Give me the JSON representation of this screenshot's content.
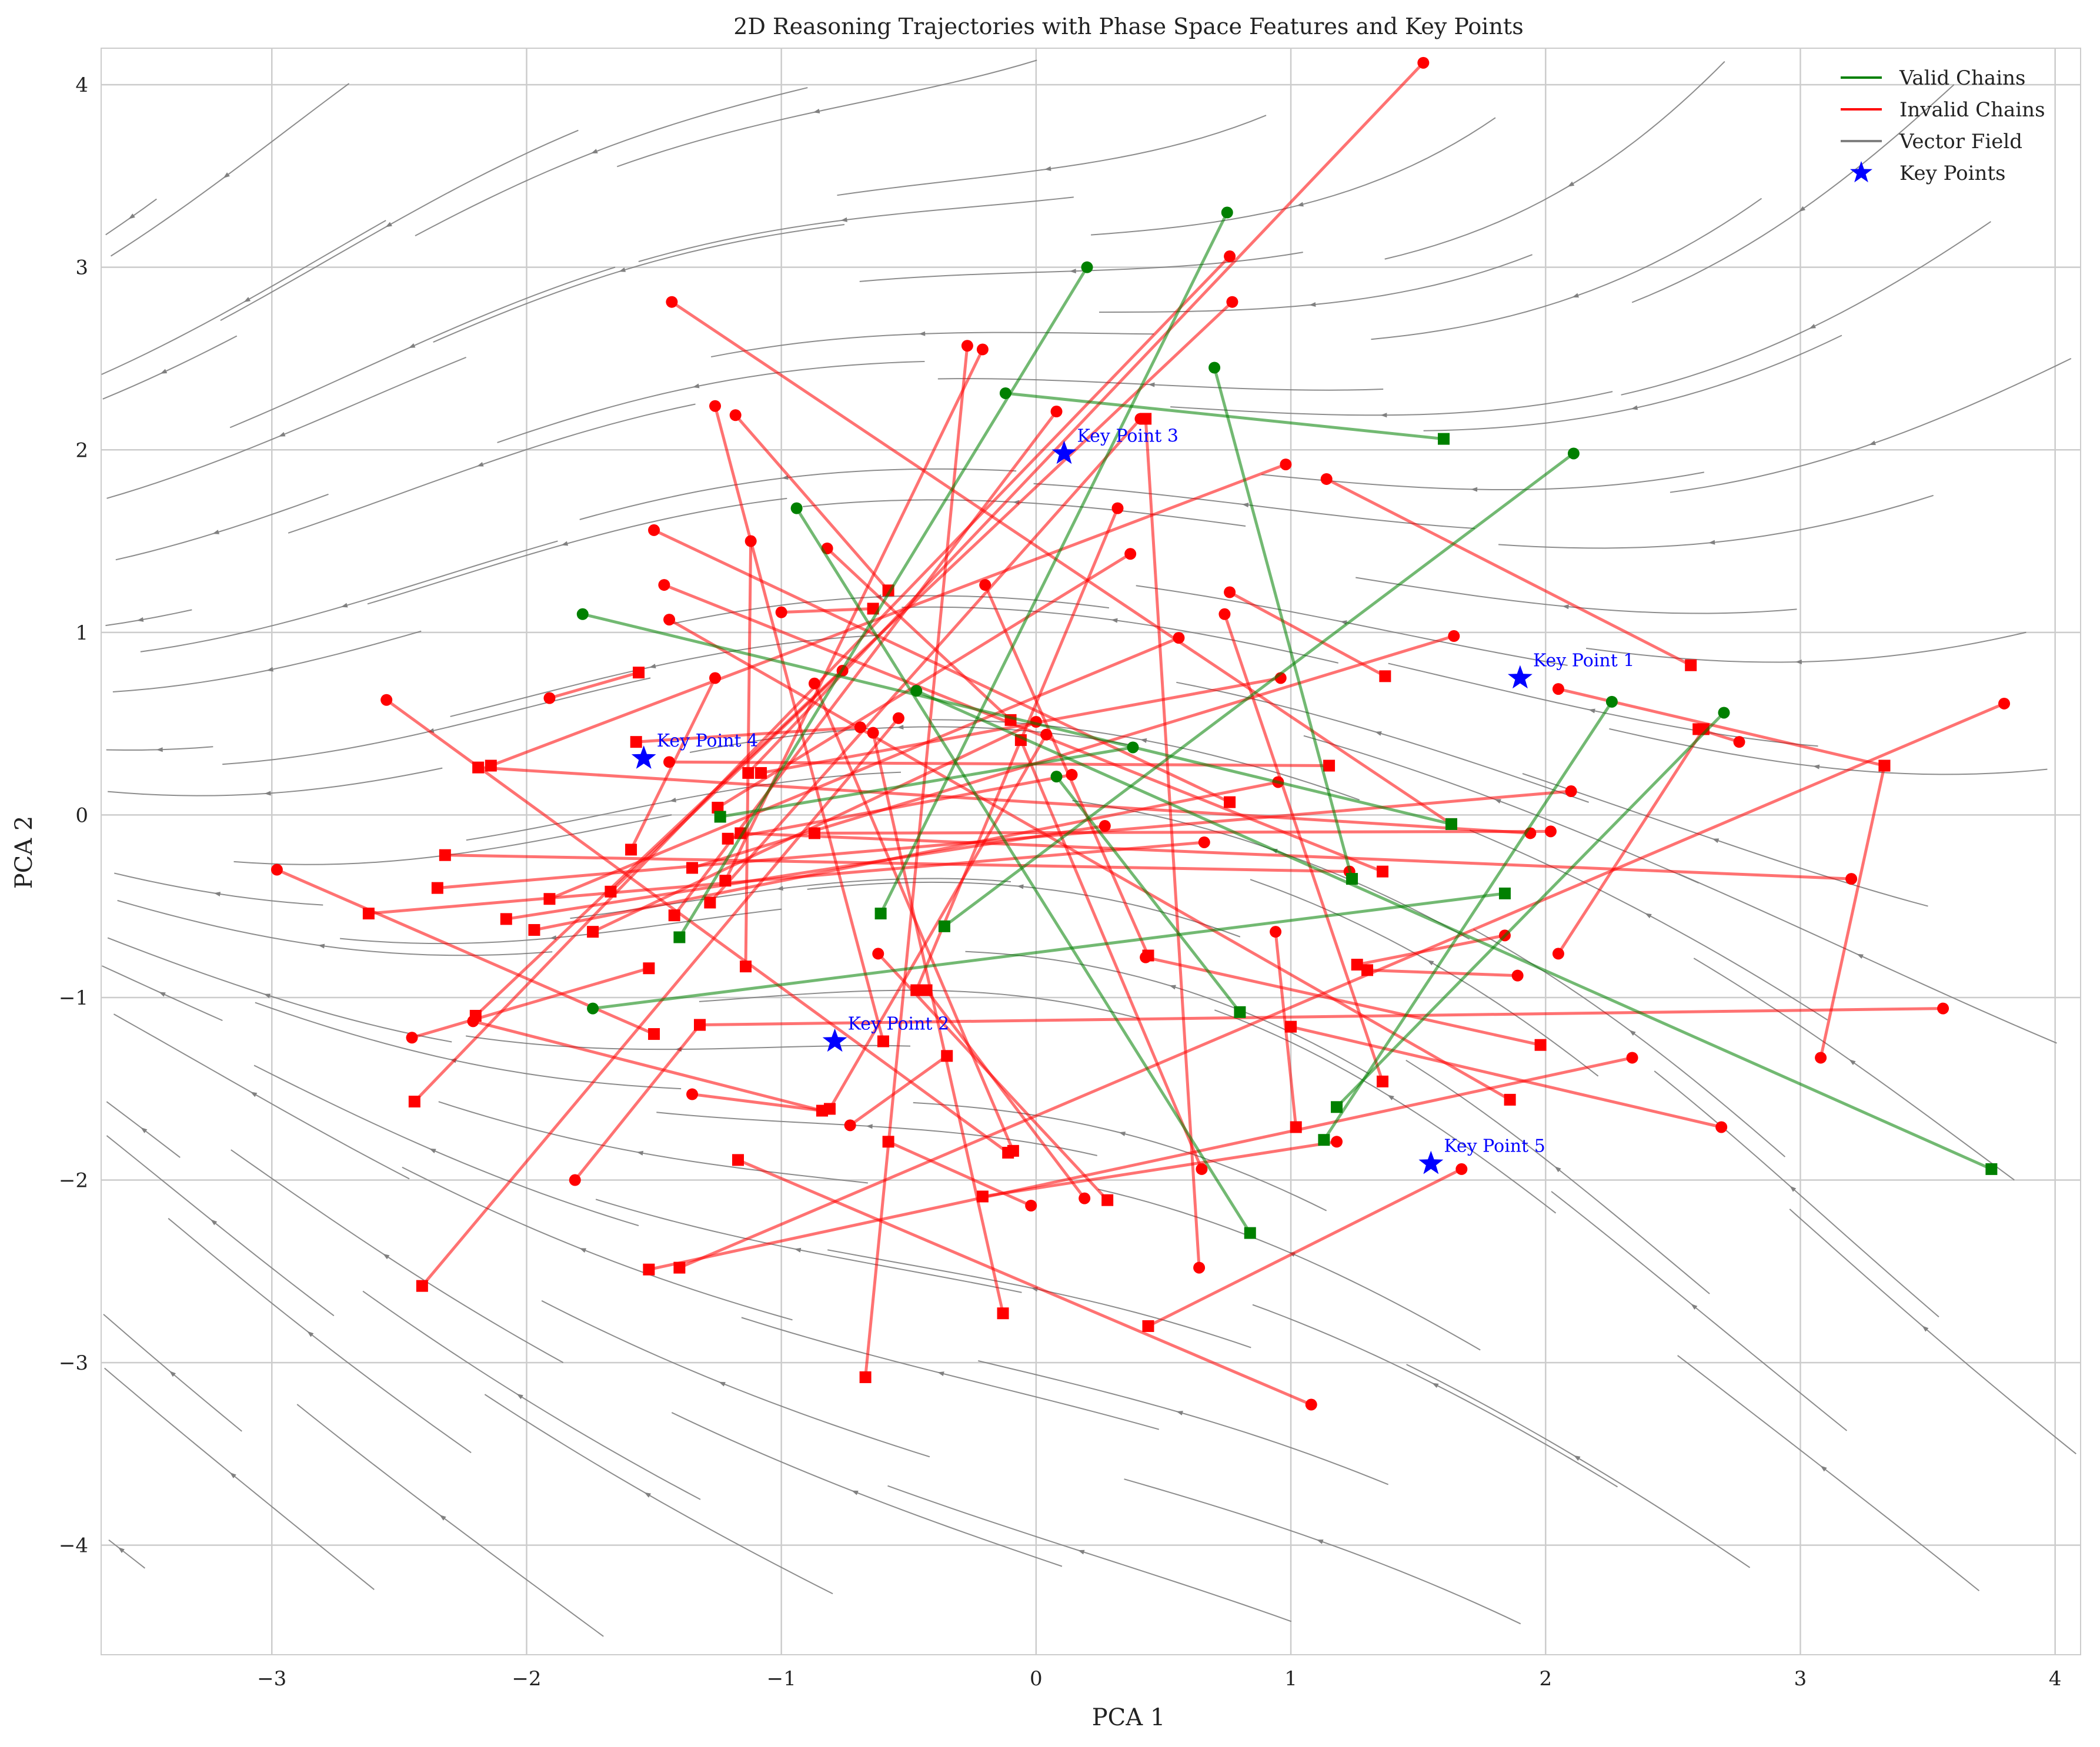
{
  "chart_data": {
    "type": "line",
    "title": "2D Reasoning Trajectories with Phase Space Features and Key Points",
    "xlabel": "PCA 1",
    "ylabel": "PCA 2",
    "xlim": [
      -3.67,
      4.1
    ],
    "ylim": [
      -4.6,
      4.2
    ],
    "xticks": [
      -3,
      -2,
      -1,
      0,
      1,
      2,
      3,
      4
    ],
    "yticks": [
      -4,
      -3,
      -2,
      -1,
      0,
      1,
      2,
      3,
      4
    ],
    "grid": true,
    "legend_position": "top-right",
    "colors": {
      "valid": "#008000",
      "invalid": "#ff0000",
      "vector_field": "#808080",
      "key_points": "#0000ff"
    },
    "legend": [
      {
        "label": "Valid Chains",
        "kind": "line",
        "color": "#008000"
      },
      {
        "label": "Invalid Chains",
        "kind": "line",
        "color": "#ff0000"
      },
      {
        "label": "Vector Field",
        "kind": "line",
        "color": "#808080"
      },
      {
        "label": "Key Points",
        "kind": "star",
        "color": "#0000ff"
      }
    ],
    "key_points": [
      {
        "label": "Key Point 1",
        "x": 1.9,
        "y": 0.75
      },
      {
        "label": "Key Point 2",
        "x": -0.79,
        "y": -1.24
      },
      {
        "label": "Key Point 3",
        "x": 0.11,
        "y": 1.98
      },
      {
        "label": "Key Point 4",
        "x": -1.54,
        "y": 0.31
      },
      {
        "label": "Key Point 5",
        "x": 1.55,
        "y": -1.91
      }
    ],
    "valid_chains": [
      {
        "start": [
          -0.94,
          1.68
        ],
        "end": [
          0.84,
          -2.29
        ]
      },
      {
        "start": [
          -0.12,
          2.31
        ],
        "end": [
          1.6,
          2.06
        ]
      },
      {
        "start": [
          0.75,
          3.3
        ],
        "end": [
          -0.61,
          -0.54
        ]
      },
      {
        "start": [
          -1.78,
          1.1
        ],
        "end": [
          1.63,
          -0.05
        ]
      },
      {
        "start": [
          0.2,
          3.0
        ],
        "end": [
          -1.4,
          -0.67
        ]
      },
      {
        "start": [
          0.7,
          2.45
        ],
        "end": [
          1.24,
          -0.35
        ]
      },
      {
        "start": [
          2.11,
          1.98
        ],
        "end": [
          -0.36,
          -0.61
        ]
      },
      {
        "start": [
          2.26,
          0.62
        ],
        "end": [
          1.13,
          -1.78
        ]
      },
      {
        "start": [
          2.7,
          0.56
        ],
        "end": [
          1.18,
          -1.6
        ]
      },
      {
        "start": [
          -1.74,
          -1.06
        ],
        "end": [
          1.84,
          -0.43
        ]
      },
      {
        "start": [
          -0.47,
          0.68
        ],
        "end": [
          3.75,
          -1.94
        ]
      },
      {
        "start": [
          0.38,
          0.37
        ],
        "end": [
          -1.24,
          -0.01
        ]
      },
      {
        "start": [
          0.08,
          0.21
        ],
        "end": [
          0.8,
          -1.08
        ]
      }
    ],
    "invalid_chains": [
      {
        "start": [
          -2.55,
          0.63
        ],
        "end": [
          -0.11,
          -1.85
        ]
      },
      {
        "start": [
          3.8,
          0.61
        ],
        "end": [
          -1.4,
          -2.48
        ]
      },
      {
        "start": [
          -1.43,
          2.81
        ],
        "end": [
          1.63,
          -0.05
        ]
      },
      {
        "start": [
          -1.26,
          2.24
        ],
        "end": [
          -0.6,
          -1.24
        ]
      },
      {
        "start": [
          1.52,
          4.12
        ],
        "end": [
          -1.13,
          0.23
        ]
      },
      {
        "start": [
          0.76,
          3.06
        ],
        "end": [
          -2.44,
          -1.57
        ]
      },
      {
        "start": [
          0.77,
          2.81
        ],
        "end": [
          -2.2,
          -1.1
        ]
      },
      {
        "start": [
          -0.27,
          2.57
        ],
        "end": [
          -0.67,
          -3.08
        ]
      },
      {
        "start": [
          0.98,
          1.92
        ],
        "end": [
          -2.14,
          0.27
        ]
      },
      {
        "start": [
          1.14,
          1.84
        ],
        "end": [
          2.57,
          0.82
        ]
      },
      {
        "start": [
          -1.5,
          1.56
        ],
        "end": [
          0.76,
          0.07
        ]
      },
      {
        "start": [
          -1.12,
          1.5
        ],
        "end": [
          -1.14,
          -0.83
        ]
      },
      {
        "start": [
          -0.82,
          1.46
        ],
        "end": [
          -0.1,
          0.52
        ]
      },
      {
        "start": [
          -1.46,
          1.26
        ],
        "end": [
          1.36,
          -0.31
        ]
      },
      {
        "start": [
          -1.44,
          1.07
        ],
        "end": [
          1.86,
          -1.56
        ]
      },
      {
        "start": [
          -1.0,
          1.11
        ],
        "end": [
          -0.64,
          1.13
        ]
      },
      {
        "start": [
          0.37,
          1.43
        ],
        "end": [
          -1.25,
          0.04
        ]
      },
      {
        "start": [
          -0.2,
          1.26
        ],
        "end": [
          0.44,
          -0.77
        ]
      },
      {
        "start": [
          0.76,
          1.22
        ],
        "end": [
          1.37,
          0.76
        ]
      },
      {
        "start": [
          0.74,
          1.1
        ],
        "end": [
          1.36,
          -1.46
        ]
      },
      {
        "start": [
          1.64,
          0.98
        ],
        "end": [
          -1.35,
          -0.29
        ]
      },
      {
        "start": [
          0.96,
          0.75
        ],
        "end": [
          -1.08,
          0.23
        ]
      },
      {
        "start": [
          -1.91,
          0.64
        ],
        "end": [
          -1.56,
          0.78
        ]
      },
      {
        "start": [
          -1.26,
          0.75
        ],
        "end": [
          -1.59,
          -0.19
        ]
      },
      {
        "start": [
          -0.87,
          0.72
        ],
        "end": [
          -0.09,
          -1.84
        ]
      },
      {
        "start": [
          -0.76,
          0.79
        ],
        "end": [
          -1.67,
          -0.42
        ]
      },
      {
        "start": [
          -0.64,
          0.45
        ],
        "end": [
          -0.13,
          -2.73
        ]
      },
      {
        "start": [
          -0.69,
          0.48
        ],
        "end": [
          -1.57,
          0.4
        ]
      },
      {
        "start": [
          -0.54,
          0.53
        ],
        "end": [
          -2.41,
          -2.58
        ]
      },
      {
        "start": [
          0.0,
          0.51
        ],
        "end": [
          -1.74,
          -0.64
        ]
      },
      {
        "start": [
          0.04,
          0.44
        ],
        "end": [
          -0.81,
          -1.61
        ]
      },
      {
        "start": [
          -0.62,
          -0.76
        ],
        "end": [
          0.28,
          -2.11
        ]
      },
      {
        "start": [
          0.14,
          0.22
        ],
        "end": [
          -1.21,
          -0.13
        ]
      },
      {
        "start": [
          1.94,
          -0.1
        ],
        "end": [
          -2.19,
          0.26
        ]
      },
      {
        "start": [
          3.2,
          -0.35
        ],
        "end": [
          -1.16,
          -0.1
        ]
      },
      {
        "start": [
          -1.44,
          0.29
        ],
        "end": [
          1.15,
          0.27
        ]
      },
      {
        "start": [
          1.23,
          -0.31
        ],
        "end": [
          -2.32,
          -0.22
        ]
      },
      {
        "start": [
          2.02,
          -0.09
        ],
        "end": [
          -0.87,
          -0.1
        ]
      },
      {
        "start": [
          0.27,
          -0.06
        ],
        "end": [
          -2.08,
          -0.57
        ]
      },
      {
        "start": [
          0.66,
          -0.15
        ],
        "end": [
          -2.62,
          -0.54
        ]
      },
      {
        "start": [
          0.95,
          0.18
        ],
        "end": [
          -1.97,
          -0.63
        ]
      },
      {
        "start": [
          2.1,
          0.13
        ],
        "end": [
          -2.35,
          -0.4
        ]
      },
      {
        "start": [
          3.08,
          -1.33
        ],
        "end": [
          3.33,
          0.27
        ]
      },
      {
        "start": [
          2.05,
          0.69
        ],
        "end": [
          3.33,
          0.27
        ]
      },
      {
        "start": [
          2.76,
          0.4
        ],
        "end": [
          2.6,
          0.47
        ]
      },
      {
        "start": [
          2.05,
          -0.76
        ],
        "end": [
          2.62,
          0.47
        ]
      },
      {
        "start": [
          1.84,
          -0.66
        ],
        "end": [
          1.26,
          -0.82
        ]
      },
      {
        "start": [
          1.89,
          -0.88
        ],
        "end": [
          1.3,
          -0.85
        ]
      },
      {
        "start": [
          0.94,
          -0.64
        ],
        "end": [
          1.02,
          -1.71
        ]
      },
      {
        "start": [
          0.43,
          -0.78
        ],
        "end": [
          1.98,
          -1.26
        ]
      },
      {
        "start": [
          2.34,
          -1.33
        ],
        "end": [
          -1.52,
          -2.49
        ]
      },
      {
        "start": [
          2.69,
          -1.71
        ],
        "end": [
          1.0,
          -1.16
        ]
      },
      {
        "start": [
          3.56,
          -1.06
        ],
        "end": [
          -1.32,
          -1.15
        ]
      },
      {
        "start": [
          1.18,
          -1.79
        ],
        "end": [
          -0.21,
          -2.09
        ]
      },
      {
        "start": [
          1.67,
          -1.94
        ],
        "end": [
          0.44,
          -2.8
        ]
      },
      {
        "start": [
          0.64,
          -2.48
        ],
        "end": [
          0.43,
          2.17
        ]
      },
      {
        "start": [
          0.19,
          -2.1
        ],
        "end": [
          -0.43,
          -0.96
        ]
      },
      {
        "start": [
          -0.02,
          -2.14
        ],
        "end": [
          -0.58,
          -1.79
        ]
      },
      {
        "start": [
          1.08,
          -3.23
        ],
        "end": [
          -1.17,
          -1.89
        ]
      },
      {
        "start": [
          -0.73,
          -1.7
        ],
        "end": [
          -0.35,
          -1.32
        ]
      },
      {
        "start": [
          0.65,
          -1.94
        ],
        "end": [
          -0.06,
          0.41
        ]
      },
      {
        "start": [
          -1.81,
          -2.0
        ],
        "end": [
          -1.32,
          -1.15
        ]
      },
      {
        "start": [
          -2.21,
          -1.13
        ],
        "end": [
          -0.84,
          -1.62
        ]
      },
      {
        "start": [
          -1.35,
          -1.53
        ],
        "end": [
          -0.84,
          -1.62
        ]
      },
      {
        "start": [
          -2.45,
          -1.22
        ],
        "end": [
          -1.52,
          -0.84
        ]
      },
      {
        "start": [
          -2.98,
          -0.3
        ],
        "end": [
          -1.5,
          -1.2
        ]
      },
      {
        "start": [
          0.32,
          1.68
        ],
        "end": [
          -0.47,
          -0.96
        ]
      },
      {
        "start": [
          -0.21,
          2.55
        ],
        "end": [
          -1.22,
          -0.36
        ]
      },
      {
        "start": [
          0.08,
          2.21
        ],
        "end": [
          -1.42,
          -0.55
        ]
      },
      {
        "start": [
          0.41,
          2.17
        ],
        "end": [
          -1.28,
          -0.48
        ]
      },
      {
        "start": [
          -1.18,
          2.19
        ],
        "end": [
          -0.58,
          1.23
        ]
      },
      {
        "start": [
          0.56,
          0.97
        ],
        "end": [
          -1.91,
          -0.46
        ]
      }
    ],
    "vector_field_note": ""
  }
}
